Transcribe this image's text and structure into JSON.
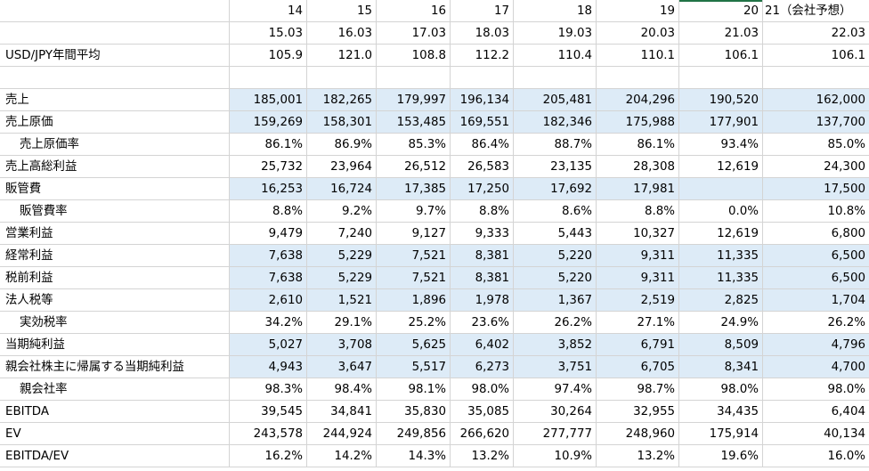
{
  "sheet": {
    "header_rows": [
      [
        "",
        "14",
        "15",
        "16",
        "17",
        "18",
        "19",
        "20",
        "21（会社予想）"
      ],
      [
        "",
        "15.03",
        "16.03",
        "17.03",
        "18.03",
        "19.03",
        "20.03",
        "21.03",
        "22.03"
      ]
    ],
    "fx_row": [
      "USD/JPY年間平均",
      "105.9",
      "121.0",
      "108.8",
      "112.2",
      "110.4",
      "110.1",
      "106.1",
      "106.1"
    ],
    "rows": [
      [
        "売上",
        "185,001",
        "182,265",
        "179,997",
        "196,134",
        "205,481",
        "204,296",
        "190,520",
        "162,000"
      ],
      [
        "売上原価",
        "159,269",
        "158,301",
        "153,485",
        "169,551",
        "182,346",
        "175,988",
        "177,901",
        "137,700"
      ],
      [
        "売上原価率",
        "86.1%",
        "86.9%",
        "85.3%",
        "86.4%",
        "88.7%",
        "86.1%",
        "93.4%",
        "85.0%"
      ],
      [
        "売上高総利益",
        "25,732",
        "23,964",
        "26,512",
        "26,583",
        "23,135",
        "28,308",
        "12,619",
        "24,300"
      ],
      [
        "販管費",
        "16,253",
        "16,724",
        "17,385",
        "17,250",
        "17,692",
        "17,981",
        "",
        "17,500"
      ],
      [
        "販管費率",
        "8.8%",
        "9.2%",
        "9.7%",
        "8.8%",
        "8.6%",
        "8.8%",
        "0.0%",
        "10.8%"
      ],
      [
        "営業利益",
        "9,479",
        "7,240",
        "9,127",
        "9,333",
        "5,443",
        "10,327",
        "12,619",
        "6,800"
      ],
      [
        "経常利益",
        "7,638",
        "5,229",
        "7,521",
        "8,381",
        "5,220",
        "9,311",
        "11,335",
        "6,500"
      ],
      [
        "税前利益",
        "7,638",
        "5,229",
        "7,521",
        "8,381",
        "5,220",
        "9,311",
        "11,335",
        "6,500"
      ],
      [
        "法人税等",
        "2,610",
        "1,521",
        "1,896",
        "1,978",
        "1,367",
        "2,519",
        "2,825",
        "1,704"
      ],
      [
        "実効税率",
        "34.2%",
        "29.1%",
        "25.2%",
        "23.6%",
        "26.2%",
        "27.1%",
        "24.9%",
        "26.2%"
      ],
      [
        "当期純利益",
        "5,027",
        "3,708",
        "5,625",
        "6,402",
        "3,852",
        "6,791",
        "8,509",
        "4,796"
      ],
      [
        "親会社株主に帰属する当期純利益",
        "4,943",
        "3,647",
        "5,517",
        "6,273",
        "3,751",
        "6,705",
        "8,341",
        "4,700"
      ],
      [
        "親会社率",
        "98.3%",
        "98.4%",
        "98.1%",
        "98.0%",
        "97.4%",
        "98.7%",
        "98.0%",
        "98.0%"
      ],
      [
        "EBITDA",
        "39,545",
        "34,841",
        "35,830",
        "35,085",
        "30,264",
        "32,955",
        "34,435",
        "6,404"
      ],
      [
        "EV",
        "243,578",
        "244,924",
        "249,856",
        "266,620",
        "277,777",
        "248,960",
        "175,914",
        "40,134"
      ],
      [
        "EBITDA/EV",
        "16.2%",
        "14.2%",
        "14.3%",
        "13.2%",
        "10.9%",
        "13.2%",
        "19.6%",
        "16.0%"
      ]
    ],
    "highlight_fill": "#ddebf7",
    "gridline_color": "#d4d4d4",
    "selected_column_marker": "#217346"
  }
}
